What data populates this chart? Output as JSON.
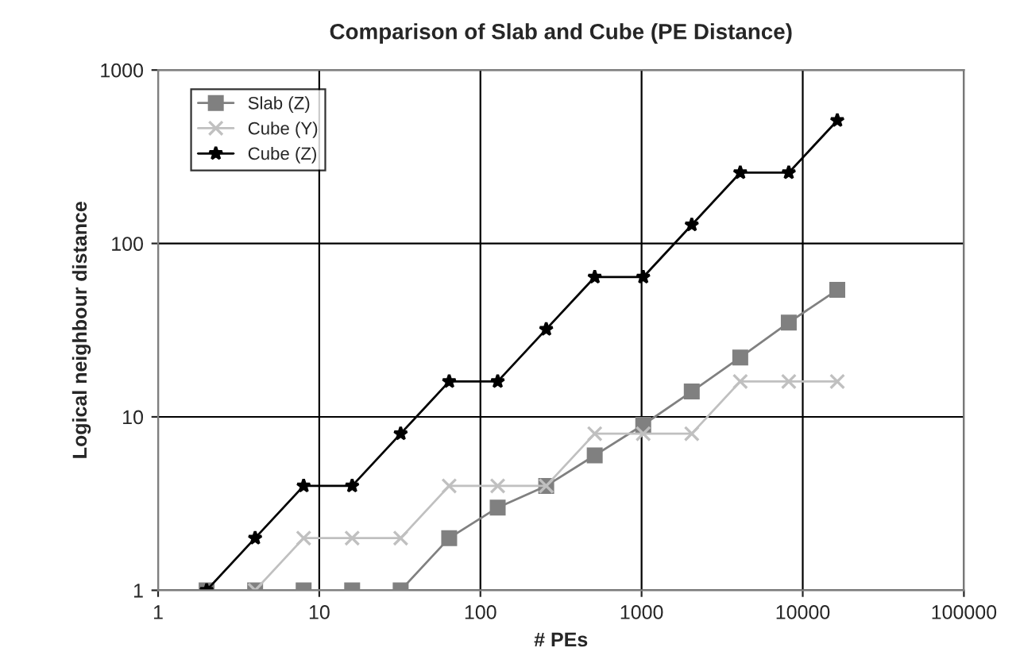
{
  "chart_data": {
    "type": "line",
    "title": "Comparison of Slab and Cube (PE Distance)",
    "xlabel": "# PEs",
    "ylabel": "Logical neighbour distance",
    "log": "xy",
    "grid": true,
    "legend": "top left",
    "x": [
      2,
      4,
      8,
      16,
      32,
      64,
      128,
      256,
      512,
      1024,
      2048,
      4096,
      8192,
      16384
    ],
    "series": [
      {
        "name": "Slab (Z)",
        "color": "#808080",
        "marker": "square",
        "values": [
          1,
          1,
          1,
          1,
          1,
          2,
          3,
          4,
          6,
          9,
          14,
          22,
          35,
          54
        ]
      },
      {
        "name": "Cube (Y)",
        "color": "#c0c0c0",
        "marker": "cross",
        "values": [
          null,
          1,
          2,
          2,
          2,
          4,
          4,
          4,
          8,
          8,
          8,
          16,
          16,
          16
        ]
      },
      {
        "name": "Cube (Z)",
        "color": "#000000",
        "marker": "star",
        "values": [
          1,
          2,
          4,
          4,
          8,
          16,
          16,
          32,
          64,
          64,
          128,
          256,
          256,
          512
        ]
      }
    ],
    "xlim": [
      1,
      100000
    ],
    "xticks": [
      1,
      10,
      100,
      1000,
      10000,
      100000
    ],
    "ylim": [
      1,
      1000
    ],
    "yticks": [
      1,
      10,
      100,
      1000
    ]
  }
}
